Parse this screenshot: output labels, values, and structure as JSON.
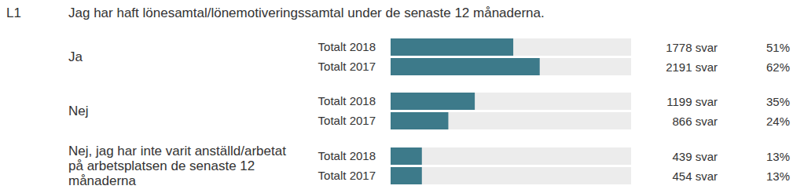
{
  "chart_data": {
    "type": "bar",
    "orientation": "horizontal",
    "annotations": [
      "L1"
    ],
    "title": "Jag har haft lönesamtal/lönemotiveringssamtal under de senaste 12 månaderna.",
    "categories": [
      "Ja",
      "Nej",
      "Nej, jag har inte varit anställd/arbetat på arbetsplatsen de senaste 12 månaderna"
    ],
    "series": [
      {
        "name": "Totalt 2018",
        "color": "#3d7a8a",
        "values": [
          51,
          35,
          13
        ],
        "value_labels": [
          "51%",
          "35%",
          "13%"
        ],
        "counts": [
          1778,
          1199,
          439
        ],
        "count_labels": [
          "1778 svar",
          "1199 svar",
          "439 svar"
        ]
      },
      {
        "name": "Totalt 2017",
        "color": "#3d7a8a",
        "values": [
          62,
          24,
          13
        ],
        "value_labels": [
          "62%",
          "24%",
          "13%"
        ],
        "counts": [
          2191,
          866,
          454
        ],
        "count_labels": [
          "2191 svar",
          "866 svar",
          "454 svar"
        ]
      }
    ],
    "xlim": [
      0,
      100
    ],
    "tick_labels": false,
    "data_labels": true
  }
}
